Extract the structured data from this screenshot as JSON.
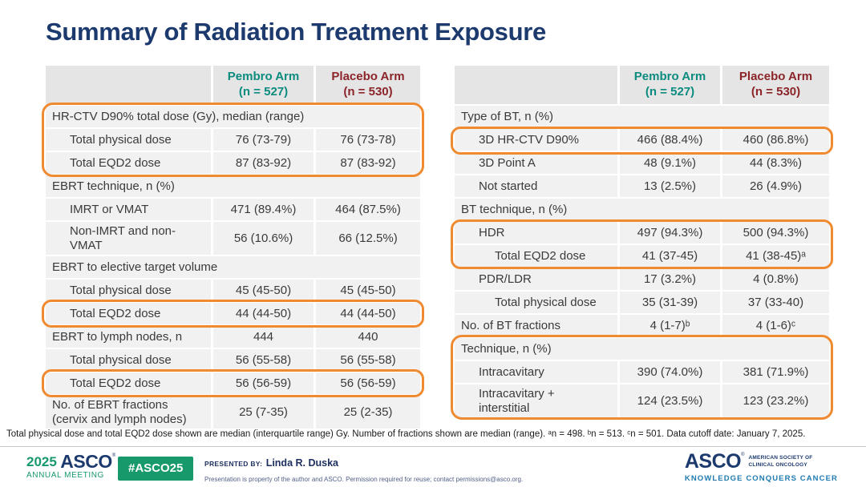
{
  "title": "Summary of Radiation Treatment Exposure",
  "columns": {
    "pembro": {
      "name": "Pembro Arm",
      "n": "(n = 527)"
    },
    "placebo": {
      "name": "Placebo Arm",
      "n": "(n = 530)"
    }
  },
  "left_table": {
    "rows": [
      {
        "label": "HR-CTV D90% total dose (Gy), median (range)"
      },
      {
        "label": "Total physical dose",
        "pembro": "76 (73-79)",
        "placebo": "76 (73-78)"
      },
      {
        "label": "Total EQD2 dose",
        "pembro": "87 (83-92)",
        "placebo": "87 (83-92)"
      },
      {
        "label": "EBRT technique, n (%)"
      },
      {
        "label": "IMRT or VMAT",
        "pembro": "471 (89.4%)",
        "placebo": "464 (87.5%)"
      },
      {
        "label": "Non-IMRT and non-\nVMAT",
        "pembro": "56 (10.6%)",
        "placebo": "66 (12.5%)"
      },
      {
        "label": "EBRT to elective target volume"
      },
      {
        "label": "Total physical dose",
        "pembro": "45 (45-50)",
        "placebo": "45 (45-50)"
      },
      {
        "label": "Total EQD2 dose",
        "pembro": "44 (44-50)",
        "placebo": "44 (44-50)"
      },
      {
        "label": "EBRT to lymph nodes, n",
        "pembro": "444",
        "placebo": "440"
      },
      {
        "label": "Total physical dose",
        "pembro": "56 (55-58)",
        "placebo": "56 (55-58)"
      },
      {
        "label": "Total EQD2 dose",
        "pembro": "56 (56-59)",
        "placebo": "56 (56-59)"
      },
      {
        "label": "No. of EBRT fractions\n(cervix and lymph nodes)",
        "pembro": "25 (7-35)",
        "placebo": "25 (2-35)"
      }
    ]
  },
  "right_table": {
    "rows": [
      {
        "label": "Type of BT, n (%)"
      },
      {
        "label": "3D HR-CTV D90%",
        "pembro": "466 (88.4%)",
        "placebo": "460 (86.8%)"
      },
      {
        "label": "3D Point A",
        "pembro": "48 (9.1%)",
        "placebo": "44 (8.3%)"
      },
      {
        "label": "Not started",
        "pembro": "13 (2.5%)",
        "placebo": "26 (4.9%)"
      },
      {
        "label": "BT technique, n (%)"
      },
      {
        "label": "HDR",
        "pembro": "497 (94.3%)",
        "placebo": "500 (94.3%)"
      },
      {
        "label": "Total EQD2 dose",
        "pembro": "41 (37-45)",
        "placebo": "41 (38-45)ᵃ"
      },
      {
        "label": "PDR/LDR",
        "pembro": "17 (3.2%)",
        "placebo": "4 (0.8%)"
      },
      {
        "label": "Total physical dose",
        "pembro": "35 (31-39)",
        "placebo": "37 (33-40)"
      },
      {
        "label": "No. of BT fractions",
        "pembro": "4 (1-7)ᵇ",
        "placebo": "4 (1-6)ᶜ"
      },
      {
        "label": "Technique, n (%)"
      },
      {
        "label": "Intracavitary",
        "pembro": "390 (74.0%)",
        "placebo": "381 (71.9%)"
      },
      {
        "label": "Intracavitary +\ninterstitial",
        "pembro": "124 (23.5%)",
        "placebo": "123 (23.2%)"
      }
    ]
  },
  "footnote": "Total physical dose and total EQD2 dose shown are median (interquartile range) Gy. Number of fractions shown are median (range). ᵃn = 498. ᵇn = 513. ᶜn = 501. Data cutoff date: January 7, 2025.",
  "footer": {
    "meeting": {
      "year": "2025",
      "org": "ASCO",
      "reg": "®",
      "line2": "ANNUAL MEETING"
    },
    "hashtag": "#ASCO25",
    "presented_by_label": "PRESENTED BY:",
    "presenter": "Linda R. Duska",
    "disclaimer": "Presentation is property of the author and ASCO. Permission required for reuse; contact permissions@asco.org.",
    "asco_logo": {
      "wordmark": "ASCO",
      "reg": "®",
      "society": "AMERICAN SOCIETY OF CLINICAL ONCOLOGY",
      "tagline": "KNOWLEDGE CONQUERS CANCER"
    }
  },
  "colors": {
    "title_navy": "#1c3a6e",
    "pembro_teal": "#0c8b7f",
    "placebo_maroon": "#8b2529",
    "highlight_orange": "#ef8a30",
    "asco_green": "#17996c",
    "tagline_blue": "#1f7ab0",
    "header_gray": "#e5e5e5",
    "row_gray": "#f1f1f1"
  }
}
